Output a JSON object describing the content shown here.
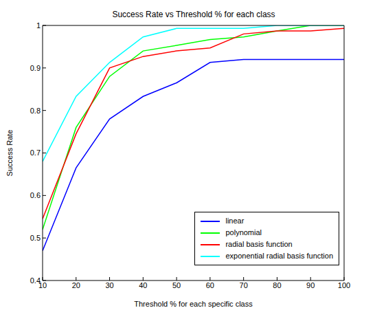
{
  "chart_data": {
    "type": "line",
    "title": "Success Rate vs Threshold % for each class",
    "x_label": "Threshold % for each specific class",
    "y_label": "Success Rate",
    "x": [
      10,
      20,
      30,
      40,
      50,
      60,
      70,
      80,
      90,
      100
    ],
    "series": [
      {
        "name": "linear",
        "color": "#0000ff",
        "values": [
          0.47,
          0.665,
          0.78,
          0.833,
          0.865,
          0.913,
          0.92,
          0.92,
          0.92,
          0.92
        ]
      },
      {
        "name": "polynomial",
        "color": "#00ff00",
        "values": [
          0.52,
          0.76,
          0.88,
          0.94,
          0.953,
          0.967,
          0.973,
          0.987,
          1.0,
          1.0
        ]
      },
      {
        "name": "radial basis function",
        "color": "#ff0000",
        "values": [
          0.545,
          0.745,
          0.9,
          0.927,
          0.94,
          0.947,
          0.98,
          0.987,
          0.987,
          0.993
        ]
      },
      {
        "name": "exponential radial basis function",
        "color": "#00ffff",
        "values": [
          0.68,
          0.833,
          0.913,
          0.973,
          0.993,
          0.993,
          0.993,
          1.0,
          1.0,
          1.0
        ]
      }
    ],
    "xlim": [
      10,
      100
    ],
    "ylim": [
      0.4,
      1
    ],
    "xticks": [
      10,
      20,
      30,
      40,
      50,
      60,
      70,
      80,
      90,
      100
    ],
    "yticks": [
      0.4,
      0.5,
      0.6,
      0.7,
      0.8,
      0.9,
      1
    ],
    "grid": false,
    "legend": "lower right"
  }
}
